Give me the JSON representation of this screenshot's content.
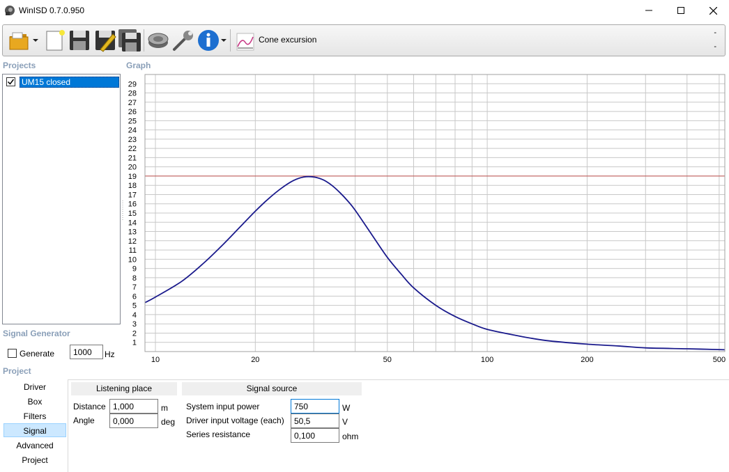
{
  "window": {
    "title": "WinISD 0.7.0.950"
  },
  "toolbar": {
    "cone_excursion_label": "Cone excursion",
    "dash_top": "-",
    "dash_bottom": "-"
  },
  "projects": {
    "section_label": "Projects",
    "items": [
      {
        "label": "UM15 closed",
        "checked": true
      }
    ]
  },
  "graph": {
    "section_label": "Graph"
  },
  "chart_data": {
    "type": "line",
    "x_scale": "log",
    "xlim": [
      9.3,
      520
    ],
    "ylim": [
      0,
      30
    ],
    "x_tick_labels": [
      10,
      20,
      50,
      100,
      200,
      500
    ],
    "y_tick_labels": [
      1,
      2,
      3,
      4,
      5,
      6,
      7,
      8,
      9,
      10,
      11,
      12,
      13,
      14,
      15,
      16,
      17,
      18,
      19,
      20,
      21,
      22,
      23,
      24,
      25,
      26,
      27,
      28,
      29
    ],
    "grid": true,
    "series": [
      {
        "color": "#1a1a8c",
        "x": [
          9.3,
          10,
          12,
          14,
          16,
          18,
          20,
          22,
          24,
          26,
          28,
          30,
          32,
          34,
          36,
          38,
          40,
          45,
          50,
          55,
          60,
          70,
          80,
          90,
          100,
          120,
          150,
          200,
          250,
          300,
          400,
          520
        ],
        "y": [
          5.3,
          5.9,
          7.6,
          9.6,
          11.6,
          13.5,
          15.2,
          16.6,
          17.7,
          18.5,
          18.9,
          18.9,
          18.6,
          18.0,
          17.2,
          16.3,
          15.3,
          12.6,
          10.2,
          8.4,
          6.9,
          5.0,
          3.8,
          3.0,
          2.4,
          1.8,
          1.2,
          0.8,
          0.6,
          0.4,
          0.3,
          0.2
        ]
      }
    ],
    "reference_line": {
      "y": 19,
      "color": "#c0504d"
    }
  },
  "signal_generator": {
    "section_label": "Signal Generator",
    "generate_label": "Generate",
    "generate_checked": false,
    "frequency": "1000",
    "frequency_unit": "Hz"
  },
  "project": {
    "section_label": "Project",
    "nav": [
      {
        "label": "Driver"
      },
      {
        "label": "Box"
      },
      {
        "label": "Filters"
      },
      {
        "label": "Signal",
        "active": true
      },
      {
        "label": "Advanced"
      },
      {
        "label": "Project"
      }
    ]
  },
  "listening_place": {
    "header": "Listening place",
    "distance_label": "Distance",
    "distance_value": "1,000",
    "distance_unit": "m",
    "angle_label": "Angle",
    "angle_value": "0,000",
    "angle_unit": "deg"
  },
  "signal_source": {
    "header": "Signal source",
    "power_label": "System input power",
    "power_value": "750",
    "power_unit": "W",
    "voltage_label": "Driver input voltage (each)",
    "voltage_value": "50,5",
    "voltage_unit": "V",
    "resistance_label": "Series resistance",
    "resistance_value": "0,100",
    "resistance_unit": "ohm"
  }
}
